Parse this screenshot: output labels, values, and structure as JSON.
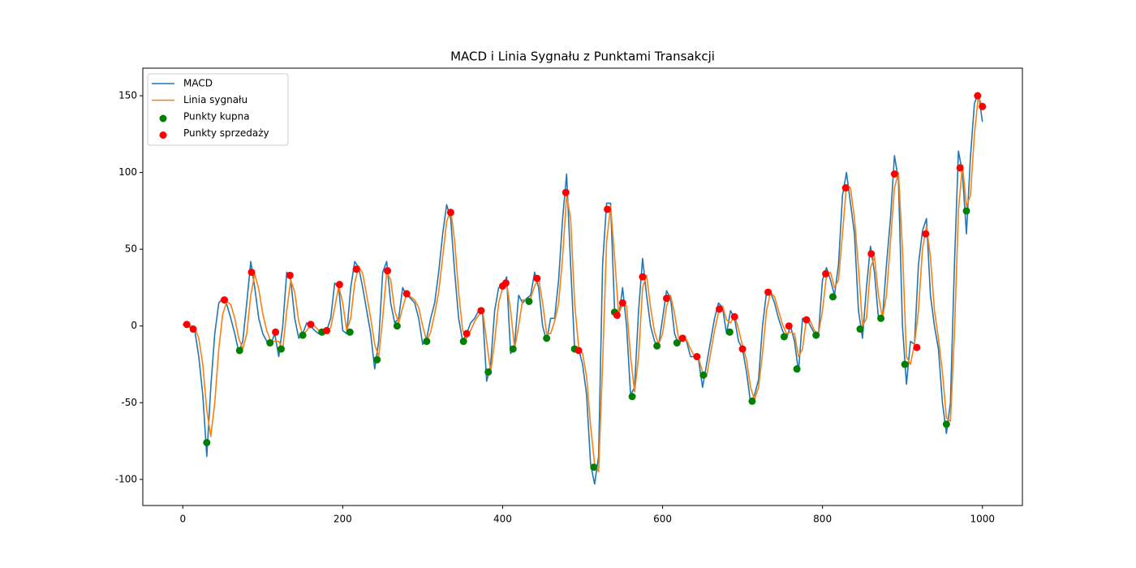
{
  "chart_data": {
    "type": "line",
    "title": "MACD i Linia Sygnału z Punktami Transakcji",
    "xlim": [
      -50,
      1050
    ],
    "ylim": [
      -117,
      168
    ],
    "xticks": [
      0,
      200,
      400,
      600,
      800,
      1000
    ],
    "yticks": [
      -100,
      -50,
      0,
      50,
      100,
      150
    ],
    "legend": "upper left",
    "grid": false,
    "x": [
      0,
      5,
      10,
      15,
      20,
      25,
      30,
      35,
      40,
      45,
      50,
      55,
      60,
      65,
      70,
      75,
      80,
      85,
      90,
      95,
      100,
      105,
      110,
      115,
      120,
      125,
      130,
      135,
      140,
      145,
      150,
      155,
      160,
      165,
      170,
      175,
      180,
      185,
      190,
      195,
      200,
      205,
      210,
      215,
      220,
      225,
      230,
      235,
      240,
      245,
      250,
      255,
      260,
      265,
      270,
      275,
      280,
      285,
      290,
      295,
      300,
      305,
      310,
      315,
      320,
      325,
      330,
      335,
      340,
      345,
      350,
      355,
      360,
      365,
      370,
      375,
      380,
      385,
      390,
      395,
      400,
      405,
      410,
      415,
      420,
      425,
      430,
      435,
      440,
      445,
      450,
      455,
      460,
      465,
      470,
      475,
      480,
      485,
      490,
      495,
      500,
      505,
      510,
      515,
      520,
      525,
      530,
      535,
      540,
      545,
      550,
      555,
      560,
      565,
      570,
      575,
      580,
      585,
      590,
      595,
      600,
      605,
      610,
      615,
      620,
      625,
      630,
      635,
      640,
      645,
      650,
      655,
      660,
      665,
      670,
      675,
      680,
      685,
      690,
      695,
      700,
      705,
      710,
      715,
      720,
      725,
      730,
      735,
      740,
      745,
      750,
      755,
      760,
      765,
      770,
      775,
      780,
      785,
      790,
      795,
      800,
      805,
      810,
      815,
      820,
      825,
      830,
      835,
      840,
      845,
      850,
      855,
      860,
      865,
      870,
      875,
      880,
      885,
      890,
      895,
      900,
      905,
      910,
      915,
      920,
      925,
      930,
      935,
      940,
      945,
      950,
      955,
      960,
      965,
      970,
      975,
      980,
      985,
      990,
      995,
      1000
    ],
    "series": [
      {
        "name": "MACD",
        "type": "line",
        "color": "#1f77b4",
        "values": [
          1,
          0,
          -1,
          -3,
          -20,
          -45,
          -85,
          -40,
          -5,
          15,
          18,
          14,
          5,
          -5,
          -17,
          -10,
          15,
          42,
          25,
          5,
          -5,
          -10,
          -12,
          -5,
          -20,
          0,
          35,
          30,
          5,
          -8,
          -5,
          2,
          0,
          -3,
          -5,
          -4,
          -3,
          5,
          28,
          25,
          -3,
          -5,
          25,
          42,
          38,
          25,
          10,
          -5,
          -28,
          -10,
          35,
          42,
          15,
          2,
          5,
          25,
          20,
          18,
          15,
          5,
          -12,
          -8,
          5,
          15,
          35,
          60,
          79,
          70,
          35,
          5,
          -10,
          -5,
          2,
          5,
          10,
          8,
          -36,
          -25,
          10,
          25,
          25,
          32,
          -18,
          -12,
          20,
          15,
          18,
          20,
          35,
          25,
          0,
          -10,
          5,
          5,
          30,
          70,
          99,
          40,
          -15,
          -15,
          -25,
          -45,
          -90,
          -103,
          -85,
          40,
          80,
          80,
          10,
          5,
          25,
          0,
          -45,
          -40,
          10,
          44,
          20,
          0,
          -10,
          -13,
          5,
          23,
          18,
          -5,
          -12,
          -8,
          -10,
          -20,
          -20,
          -22,
          -40,
          -25,
          -10,
          5,
          15,
          12,
          -5,
          10,
          5,
          -10,
          -15,
          -30,
          -50,
          -45,
          -35,
          0,
          22,
          22,
          15,
          5,
          -3,
          -8,
          0,
          -10,
          -30,
          5,
          5,
          0,
          -5,
          -5,
          30,
          38,
          30,
          20,
          40,
          85,
          100,
          80,
          60,
          10,
          -8,
          25,
          52,
          35,
          5,
          5,
          40,
          70,
          111,
          95,
          0,
          -38,
          -10,
          -12,
          40,
          62,
          70,
          20,
          0,
          -15,
          -50,
          -70,
          -50,
          40,
          114,
          100,
          60,
          110,
          145,
          152,
          133
        ]
      },
      {
        "name": "Linia sygnału",
        "type": "line",
        "color": "#ff7f0e",
        "values": [
          1,
          1,
          0,
          -1,
          -8,
          -25,
          -55,
          -72,
          -50,
          -15,
          8,
          16,
          14,
          5,
          -8,
          -15,
          -5,
          20,
          34,
          24,
          8,
          -3,
          -10,
          -10,
          -10,
          -15,
          10,
          30,
          22,
          3,
          -6,
          -3,
          1,
          0,
          -3,
          -4,
          -3,
          -1,
          12,
          26,
          15,
          -3,
          5,
          28,
          39,
          34,
          20,
          5,
          -12,
          -20,
          5,
          35,
          30,
          10,
          2,
          12,
          21,
          19,
          17,
          12,
          0,
          -10,
          -4,
          8,
          22,
          45,
          68,
          76,
          55,
          22,
          -3,
          -8,
          -3,
          3,
          7,
          10,
          -10,
          -30,
          -10,
          15,
          25,
          28,
          10,
          -15,
          0,
          17,
          17,
          18,
          26,
          31,
          15,
          -5,
          -5,
          3,
          15,
          45,
          85,
          70,
          15,
          -14,
          -18,
          -33,
          -65,
          -90,
          -95,
          -25,
          55,
          78,
          45,
          8,
          14,
          13,
          -20,
          -43,
          -20,
          25,
          33,
          12,
          -4,
          -12,
          -5,
          13,
          20,
          8,
          -8,
          -10,
          -9,
          -15,
          -20,
          -21,
          -30,
          -33,
          -18,
          -3,
          9,
          13,
          4,
          2,
          7,
          -2,
          -13,
          -22,
          -40,
          -48,
          -40,
          -18,
          10,
          22,
          19,
          10,
          1,
          -5,
          -4,
          -5,
          -20,
          -15,
          5,
          3,
          -3,
          -5,
          10,
          33,
          35,
          25,
          30,
          60,
          92,
          90,
          70,
          38,
          0,
          5,
          38,
          45,
          20,
          5,
          20,
          55,
          90,
          100,
          50,
          -20,
          -25,
          -12,
          10,
          50,
          65,
          45,
          10,
          -8,
          -30,
          -60,
          -62,
          -5,
          75,
          105,
          78,
          85,
          125,
          150,
          142
        ]
      },
      {
        "name": "Punkty kupna",
        "type": "scatter",
        "color": "#008000",
        "x": [
          30,
          71,
          109,
          123,
          150,
          174,
          209,
          243,
          268,
          305,
          351,
          382,
          413,
          433,
          455,
          490,
          514,
          540,
          562,
          593,
          618,
          651,
          684,
          712,
          752,
          768,
          792,
          813,
          847,
          873,
          903,
          955,
          980
        ],
        "values": [
          -76,
          -16,
          -11,
          -15,
          -6,
          -4,
          -4,
          -22,
          0,
          -10,
          -10,
          -30,
          -15,
          16,
          -8,
          -15,
          -92,
          9,
          -46,
          -13,
          -11,
          -32,
          -4,
          -49,
          -7,
          -28,
          -6,
          19,
          -2,
          5,
          -25,
          -64,
          75
        ]
      },
      {
        "name": "Punkty sprzedaży",
        "type": "scatter",
        "color": "#ff0000",
        "x": [
          5,
          13,
          52,
          86,
          116,
          134,
          160,
          180,
          196,
          217,
          256,
          280,
          335,
          355,
          373,
          400,
          404,
          443,
          479,
          495,
          531,
          543,
          550,
          575,
          605,
          625,
          643,
          671,
          690,
          700,
          732,
          758,
          780,
          804,
          829,
          861,
          890,
          918,
          929,
          972,
          994,
          1000
        ],
        "values": [
          1,
          -2,
          17,
          35,
          -4,
          33,
          1,
          -3,
          27,
          37,
          36,
          21,
          74,
          -5,
          10,
          26,
          28,
          31,
          87,
          -16,
          76,
          7,
          15,
          32,
          18,
          -8,
          -20,
          11,
          6,
          -15,
          22,
          0,
          4,
          34,
          90,
          47,
          99,
          -14,
          60,
          103,
          150,
          143
        ]
      }
    ]
  }
}
